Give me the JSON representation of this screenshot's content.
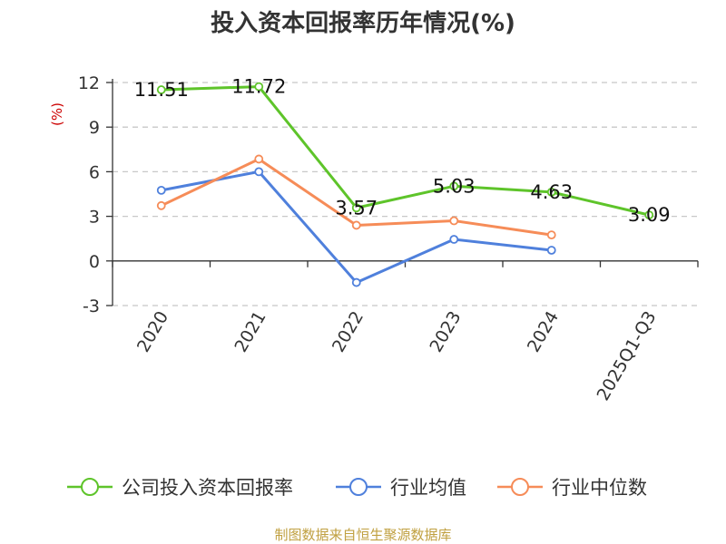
{
  "chart_data": {
    "type": "line",
    "title": "投入资本回报率历年情况(%)",
    "ylabel": "(%)",
    "xlabel": "",
    "categories": [
      "2020",
      "2021",
      "2022",
      "2023",
      "2024",
      "2025Q1-Q3"
    ],
    "ylim": [
      -3,
      12
    ],
    "yticks": [
      -3,
      0,
      3,
      6,
      9,
      12
    ],
    "grid": true,
    "legend_position": "bottom",
    "series": [
      {
        "name": "公司投入资本回报率",
        "color": "#5ec42a",
        "values": [
          11.51,
          11.72,
          3.57,
          5.03,
          4.63,
          3.09
        ],
        "labels": [
          "11.51",
          "11.72",
          "3.57",
          "5.03",
          "4.63",
          "3.09"
        ]
      },
      {
        "name": "行业均值",
        "color": "#4f80dc",
        "values": [
          4.75,
          6.0,
          -1.45,
          1.45,
          0.72,
          null
        ]
      },
      {
        "name": "行业中位数",
        "color": "#f68c58",
        "values": [
          3.72,
          6.85,
          2.4,
          2.7,
          1.75,
          null
        ]
      }
    ]
  },
  "source": "制图数据来自恒生聚源数据库"
}
